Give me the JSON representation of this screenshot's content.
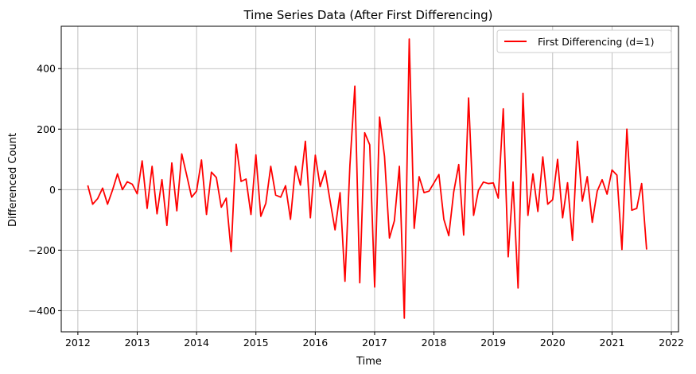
{
  "chart_data": {
    "type": "line",
    "title": "Time Series Data (After First Differencing)",
    "xlabel": "Time",
    "ylabel": "Differenced Count",
    "xlim": [
      2011.72,
      2022.12
    ],
    "ylim": [
      -470,
      540
    ],
    "x_ticks": [
      2012,
      2013,
      2014,
      2015,
      2016,
      2017,
      2018,
      2019,
      2020,
      2021,
      2022
    ],
    "x_tick_labels": [
      "2012",
      "2013",
      "2014",
      "2015",
      "2016",
      "2017",
      "2018",
      "2019",
      "2020",
      "2021",
      "2022"
    ],
    "y_ticks": [
      -400,
      -200,
      0,
      200,
      400
    ],
    "y_tick_labels": [
      "−400",
      "−200",
      "0",
      "200",
      "400"
    ],
    "grid": true,
    "legend_position": "upper right",
    "line_color": "#ff0000",
    "series": [
      {
        "name": "First Differencing (d=1)",
        "x": [
          2012.167,
          2012.25,
          2012.333,
          2012.417,
          2012.5,
          2012.583,
          2012.667,
          2012.75,
          2012.833,
          2012.917,
          2013.0,
          2013.083,
          2013.167,
          2013.25,
          2013.333,
          2013.417,
          2013.5,
          2013.583,
          2013.667,
          2013.75,
          2013.833,
          2013.917,
          2014.0,
          2014.083,
          2014.167,
          2014.25,
          2014.333,
          2014.417,
          2014.5,
          2014.583,
          2014.667,
          2014.75,
          2014.833,
          2014.917,
          2015.0,
          2015.083,
          2015.167,
          2015.25,
          2015.333,
          2015.417,
          2015.5,
          2015.583,
          2015.667,
          2015.75,
          2015.833,
          2015.917,
          2016.0,
          2016.083,
          2016.167,
          2016.25,
          2016.333,
          2016.417,
          2016.5,
          2016.583,
          2016.667,
          2016.75,
          2016.833,
          2016.917,
          2017.0,
          2017.083,
          2017.167,
          2017.25,
          2017.333,
          2017.417,
          2017.5,
          2017.583,
          2017.667,
          2017.75,
          2017.833,
          2017.917,
          2018.083,
          2018.167,
          2018.25,
          2018.333,
          2018.417,
          2018.5,
          2018.583,
          2018.667,
          2018.75,
          2018.833,
          2018.917,
          2019.0,
          2019.083,
          2019.167,
          2019.25,
          2019.333,
          2019.417,
          2019.5,
          2019.583,
          2019.667,
          2019.75,
          2019.833,
          2019.917,
          2020.0,
          2020.083,
          2020.167,
          2020.25,
          2020.333,
          2020.417,
          2020.5,
          2020.583,
          2020.667,
          2020.75,
          2020.833,
          2020.917,
          2021.0,
          2021.083,
          2021.167,
          2021.25,
          2021.333,
          2021.417,
          2021.5,
          2021.583
        ],
        "values": [
          14,
          -48,
          -30,
          5,
          -48,
          -2,
          52,
          0,
          26,
          18,
          -14,
          95,
          -62,
          77,
          -80,
          33,
          -118,
          88,
          -70,
          118,
          48,
          -25,
          -5,
          98,
          -82,
          58,
          40,
          -58,
          -28,
          -205,
          150,
          27,
          35,
          -82,
          115,
          -88,
          -45,
          77,
          -18,
          -25,
          13,
          -98,
          77,
          15,
          160,
          -93,
          114,
          10,
          62,
          -37,
          -133,
          -10,
          -303,
          80,
          342,
          -308,
          188,
          148,
          -322,
          240,
          110,
          -160,
          -103,
          77,
          -425,
          498,
          -128,
          43,
          -10,
          -5,
          50,
          -98,
          -152,
          -8,
          83,
          -150,
          303,
          -85,
          -2,
          25,
          20,
          22,
          -28,
          267,
          -222,
          25,
          -325,
          318,
          -85,
          52,
          -72,
          108,
          -48,
          -33,
          100,
          -93,
          23,
          -168,
          160,
          -38,
          43,
          -108,
          -5,
          33,
          -15,
          65,
          48,
          -198,
          200,
          -68,
          -62,
          20,
          -198
        ]
      }
    ]
  }
}
